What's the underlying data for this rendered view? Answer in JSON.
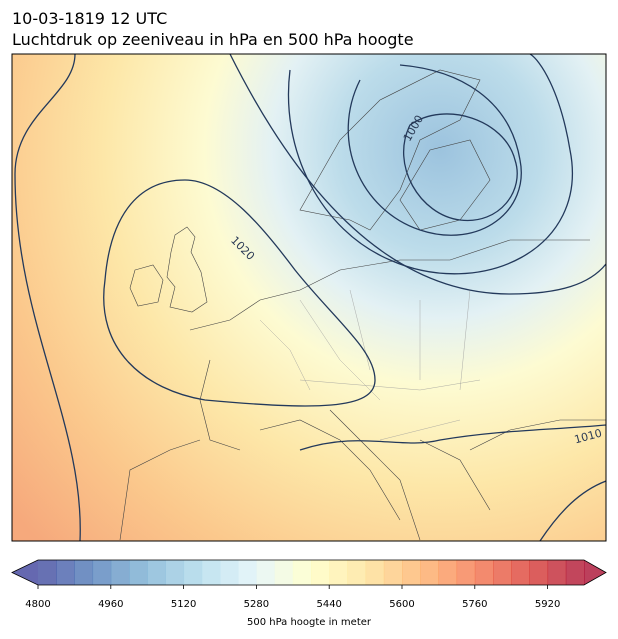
{
  "header": {
    "title": "10-03-1819 12 UTC",
    "subtitle": "Luchtdruk op zeeniveau in hPa en 500 hPa hoogte"
  },
  "contour_labels": [
    "1020",
    "1000",
    "1010"
  ],
  "colorbar": {
    "label": "500 hPa hoogte in meter",
    "lim": [
      4800,
      6000
    ],
    "step": 40,
    "ticks": [
      4800,
      4960,
      5120,
      5280,
      5440,
      5600,
      5760,
      5920
    ],
    "colormap": [
      "#313695",
      "#4575b4",
      "#74add1",
      "#abd9e9",
      "#e0f3f8",
      "#ffffbf",
      "#fee090",
      "#fdae61",
      "#f46d43",
      "#d73027",
      "#a50026"
    ]
  }
}
